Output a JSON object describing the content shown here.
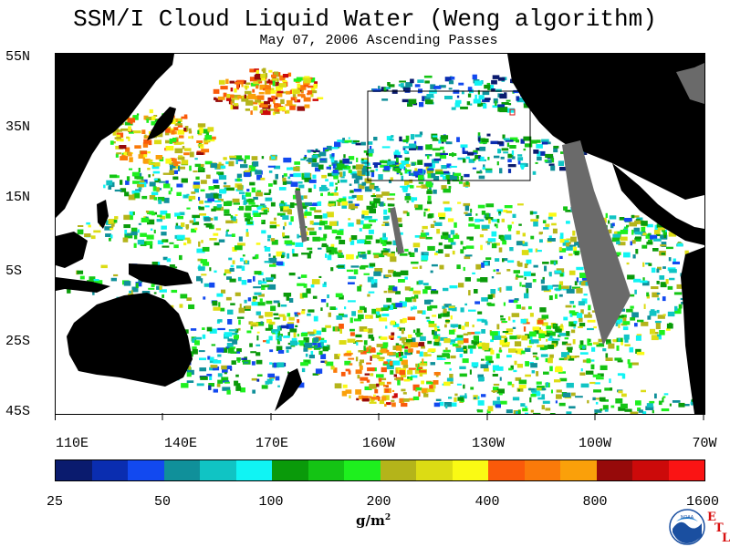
{
  "title": "SSM/I Cloud Liquid Water (Weng algorithm)",
  "subtitle": "May 07, 2006  Ascending Passes",
  "lat_labels": [
    "55N",
    "35N",
    "15N",
    "5S",
    "25S",
    "45S"
  ],
  "lon_labels": [
    "110E",
    "140E",
    "170E",
    "160W",
    "130W",
    "100W",
    "70W"
  ],
  "colorbar": {
    "colors": [
      "#0a1b6e",
      "#0a2db0",
      "#1249f0",
      "#10909a",
      "#10c4c4",
      "#10f4f4",
      "#0a9a0a",
      "#14c414",
      "#1ef01e",
      "#b4b41a",
      "#dcdc14",
      "#fafa14",
      "#fa5a0a",
      "#fa7a0a",
      "#faa00a",
      "#960a0a",
      "#cc0a0a",
      "#fa1414"
    ],
    "tick_labels": [
      "25",
      "50",
      "100",
      "200",
      "400",
      "800",
      "1600"
    ]
  },
  "units": "g/m",
  "units_exp": "2",
  "logo": {
    "text": "NOAA",
    "suffix_letters": [
      "E",
      "T",
      "L"
    ]
  }
}
